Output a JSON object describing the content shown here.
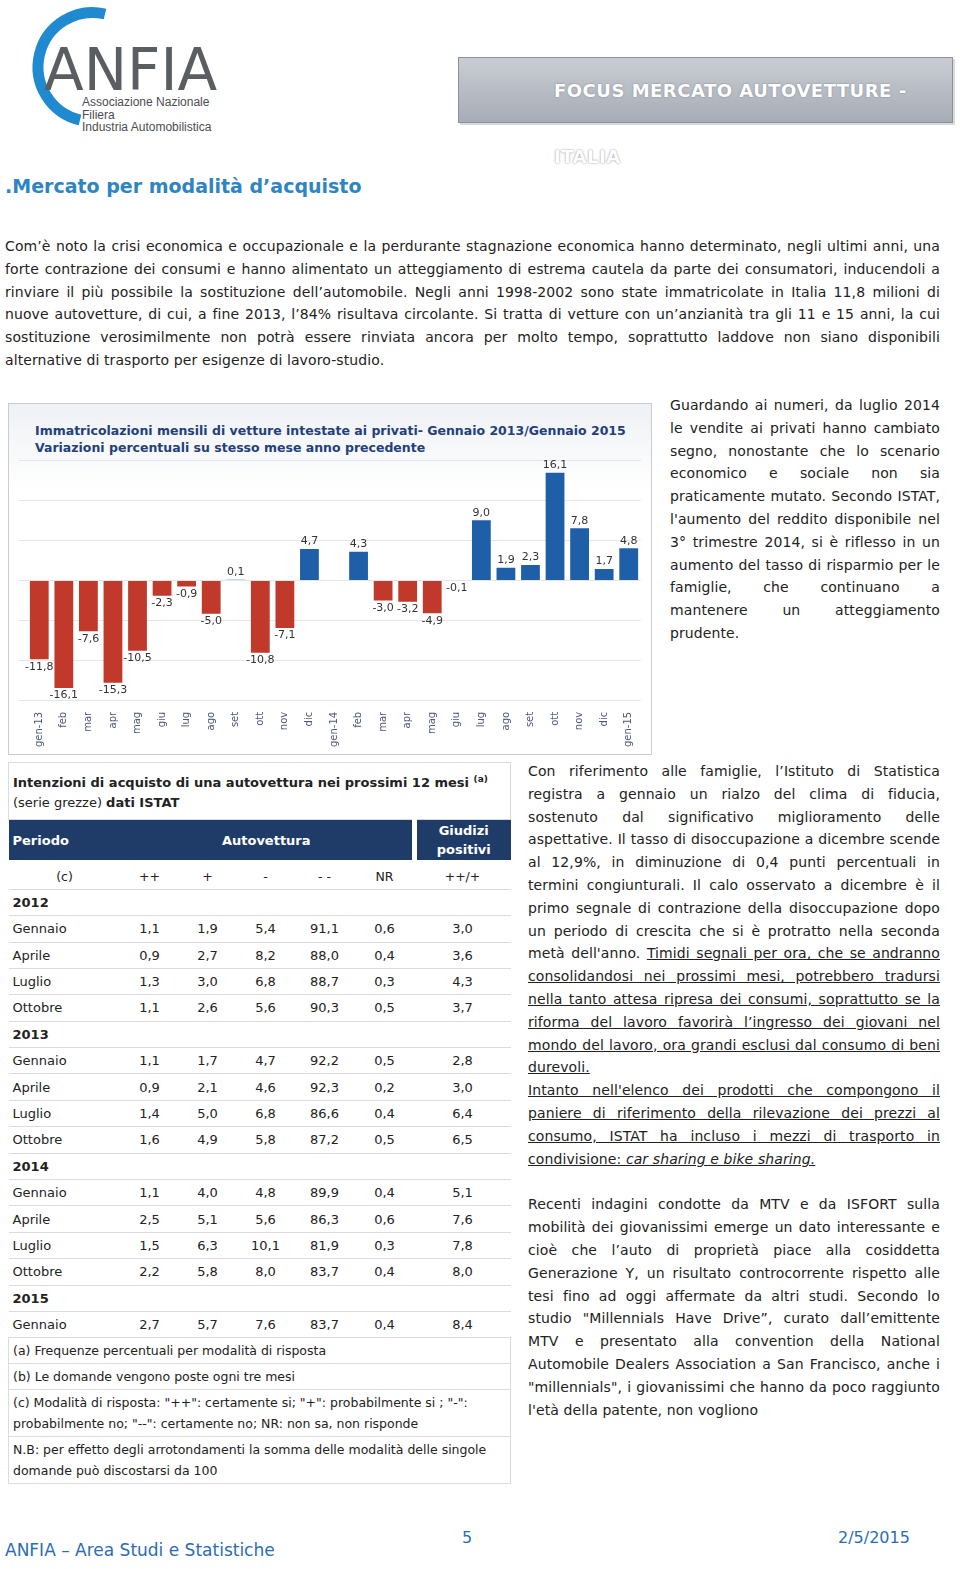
{
  "header": {
    "logo": {
      "name": "ANFIA",
      "lines": [
        "Associazione Nazionale",
        "Filiera",
        "Industria Automobilistica"
      ]
    },
    "banner": "FOCUS MERCATO AUTOVETTURE - ITALIA"
  },
  "heading": ".Mercato per modalità d’acquisto",
  "intro": "Com’è noto la crisi economica e occupazionale e la perdurante stagnazione economica hanno determinato, negli ultimi anni, una forte contrazione dei consumi e hanno alimentato un atteggiamento di estrema cautela da parte dei consumatori, inducendoli a rinviare il più possibile la sostituzione dell’automobile. Negli anni 1998-2002 sono state immatricolate in Italia 11,8 milioni di nuove autovetture, di cui, a fine 2013, l’84% risultava circolante. Si tratta di vetture con un’anzianità tra gli 11 e 15 anni, la cui sostituzione verosimilmente non potrà essere rinviata ancora per molto tempo, soprattutto laddove non siano disponibili alternative di trasporto per esigenze di lavoro-studio.",
  "side_text": "Guardando ai numeri, da luglio 2014 le vendite ai privati hanno cambiato segno, nonostante che lo scenario economico e sociale non sia praticamente mutato. Secondo ISTAT, l'aumento del reddito disponibile nel 3° trimestre 2014, si è riflesso in un aumento del tasso di risparmio per le famiglie, che continuano a mantenere un atteggiamento prudente.",
  "chart_data": {
    "type": "bar",
    "title": "Immatricolazioni mensili di vetture intestate ai privati- Gennaio 2013/Gennaio 2015",
    "subtitle": "Variazioni percentuali su stesso mese anno precedente",
    "categories": [
      "gen-13",
      "feb",
      "mar",
      "apr",
      "mag",
      "giu",
      "lug",
      "ago",
      "set",
      "ott",
      "nov",
      "dic",
      "gen-14",
      "feb",
      "mar",
      "apr",
      "mag",
      "giu",
      "lug",
      "ago",
      "set",
      "ott",
      "nov",
      "dic",
      "gen-15"
    ],
    "values": [
      -11.8,
      -16.1,
      -7.6,
      -15.3,
      -10.5,
      -2.3,
      -0.9,
      -5.0,
      0.1,
      -10.8,
      -7.1,
      4.7,
      null,
      4.3,
      -3.0,
      -3.2,
      -4.9,
      -0.1,
      9.0,
      1.9,
      2.3,
      16.1,
      7.8,
      1.7,
      4.8
    ],
    "value_labels": [
      "-11,8",
      "-16,1",
      "-7,6",
      "-15,3",
      "-10,5",
      "-2,3",
      "-0,9",
      "-5,0",
      "0,1",
      "-10,8",
      "-7,1",
      "4,7",
      null,
      "4,3",
      "-3,0",
      "-3,2",
      "-4,9",
      "-0,1",
      "9,0",
      "1,9",
      "2,3",
      "16,1",
      "7,8",
      "1,7",
      "4,8"
    ],
    "colors": [
      "#c0392b",
      "#c0392b",
      "#c0392b",
      "#c0392b",
      "#c0392b",
      "#c0392b",
      "#c0392b",
      "#c0392b",
      "#1f5fa8",
      "#c0392b",
      "#c0392b",
      "#1f5fa8",
      "#1f5fa8",
      "#1f5fa8",
      "#c0392b",
      "#c0392b",
      "#c0392b",
      "#c0392b",
      "#1f5fa8",
      "#1f5fa8",
      "#1f5fa8",
      "#1f5fa8",
      "#1f5fa8",
      "#1f5fa8",
      "#1f5fa8"
    ],
    "ylim": [
      -18,
      18
    ],
    "yticks": [
      -18,
      -12,
      -6,
      0,
      6,
      12,
      18
    ],
    "grid": true,
    "data_labels": true,
    "tick_labels": "x"
  },
  "table": {
    "title": "Intenzioni di acquisto di una autovettura nei prossimi 12 mesi",
    "title_note": "(a)",
    "title_suffix": "(serie grezze)",
    "title_source": "dati ISTAT",
    "header": [
      "Periodo",
      "Autovettura",
      "Giudizi positivi"
    ],
    "subheader": [
      "(c)",
      "++",
      "+",
      "-",
      "- -",
      "NR",
      "++/+"
    ],
    "groups": [
      {
        "year": "2012",
        "rows": [
          [
            "Gennaio",
            "1,1",
            "1,9",
            "5,4",
            "91,1",
            "0,6",
            "3,0"
          ],
          [
            "Aprile",
            "0,9",
            "2,7",
            "8,2",
            "88,0",
            "0,4",
            "3,6"
          ],
          [
            "Luglio",
            "1,3",
            "3,0",
            "6,8",
            "88,7",
            "0,3",
            "4,3"
          ],
          [
            "Ottobre",
            "1,1",
            "2,6",
            "5,6",
            "90,3",
            "0,5",
            "3,7"
          ]
        ]
      },
      {
        "year": "2013",
        "rows": [
          [
            "Gennaio",
            "1,1",
            "1,7",
            "4,7",
            "92,2",
            "0,5",
            "2,8"
          ],
          [
            "Aprile",
            "0,9",
            "2,1",
            "4,6",
            "92,3",
            "0,2",
            "3,0"
          ],
          [
            "Luglio",
            "1,4",
            "5,0",
            "6,8",
            "86,6",
            "0,4",
            "6,4"
          ],
          [
            "Ottobre",
            "1,6",
            "4,9",
            "5,8",
            "87,2",
            "0,5",
            "6,5"
          ]
        ]
      },
      {
        "year": "2014",
        "rows": [
          [
            "Gennaio",
            "1,1",
            "4,0",
            "4,8",
            "89,9",
            "0,4",
            "5,1"
          ],
          [
            "Aprile",
            "2,5",
            "5,1",
            "5,6",
            "86,3",
            "0,6",
            "7,6"
          ],
          [
            "Luglio",
            "1,5",
            "6,3",
            "10,1",
            "81,9",
            "0,3",
            "7,8"
          ],
          [
            "Ottobre",
            "2,2",
            "5,8",
            "8,0",
            "83,7",
            "0,4",
            "8,0"
          ]
        ]
      },
      {
        "year": "2015",
        "rows": [
          [
            "Gennaio",
            "2,7",
            "5,7",
            "7,6",
            "83,7",
            "0,4",
            "8,4"
          ]
        ]
      }
    ],
    "notes": [
      "(a) Frequenze percentuali per modalità di risposta",
      "(b) Le domande vengono poste ogni tre mesi",
      "(c) Modalità di risposta: \"++\": certamente si; \"+\": probabilmente si ; \"-\": probabilmente no; \"--\": certamente no; NR: non sa, non risponde",
      "N.B: per effetto degli arrotondamenti la somma delle modalità delle singole domande può discostarsi da 100"
    ]
  },
  "right_column": [
    [
      {
        "text": "Con riferimento alle famiglie, l’Istituto di Statistica registra a gennaio un rialzo del clima di fiducia, sostenuto dal significativo miglioramento delle aspettative. Il tasso di disoccupazione a dicembre scende al 12,9%, in diminuzione di 0,4 punti percentuali in termini congiunturali. Il calo osservato a dicembre è il primo segnale di contrazione della disoccupazione dopo un periodo di crescita che si è protratto nella seconda metà dell'anno. "
      },
      {
        "text": "Timidi segnali per ora, che se andranno consolidandosi nei prossimi mesi, potrebbero tradursi nella tanto attesa ripresa dei consumi, soprattutto se la riforma del lavoro favorirà l’ingresso dei giovani nel mondo del lavoro, ora grandi esclusi dal consumo di beni durevoli.",
        "underline": true
      }
    ],
    [
      {
        "text": "Intanto nell'elenco dei prodotti che compongono il paniere di riferimento della rilevazione dei prezzi al consumo, ISTAT ha incluso i mezzi di trasporto in condivisione: ",
        "underline": true
      },
      {
        "text": "car sharing e bike sharing.",
        "underline": true,
        "italic": true
      }
    ],
    [
      {
        "text": "Recenti indagini condotte da MTV e da ISFORT sulla mobilità dei giovanissimi emerge un dato interessante e cioè che l’auto di proprietà piace alla cosiddetta Generazione Y, un risultato controcorrente rispetto alle tesi fino ad oggi affermate da altri studi. Secondo lo studio \"Millennials Have Drive”, curato dall’emittente MTV e presentato alla convention della National Automobile Dealers Association a San Francisco, anche i \"millennials\", i giovanissimi che hanno da poco raggiunto l'età della patente, non vogliono"
      }
    ]
  ],
  "footer": {
    "left": "ANFIA – Area Studi e Statistiche",
    "page": "5",
    "date": "2/5/2015"
  }
}
